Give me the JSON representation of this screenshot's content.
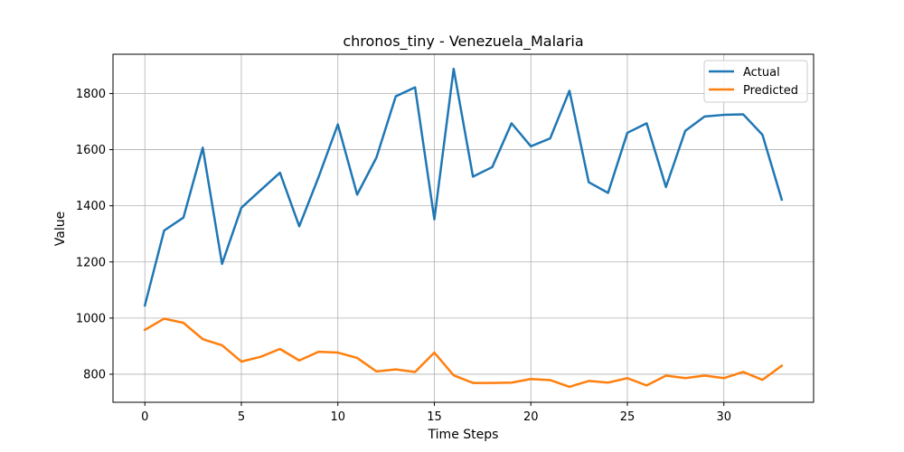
{
  "chart_data": {
    "type": "line",
    "title": "chronos_tiny - Venezuela_Malaria",
    "xlabel": "Time Steps",
    "ylabel": "Value",
    "xlim": [
      -1.65,
      34.65
    ],
    "ylim": [
      700,
      1940
    ],
    "xticks": [
      0,
      5,
      10,
      15,
      20,
      25,
      30
    ],
    "yticks": [
      800,
      1000,
      1200,
      1400,
      1600,
      1800
    ],
    "grid": true,
    "legend_position": "top-right",
    "x": [
      0,
      1,
      2,
      3,
      4,
      5,
      6,
      7,
      8,
      9,
      10,
      11,
      12,
      13,
      14,
      15,
      16,
      17,
      18,
      19,
      20,
      21,
      22,
      23,
      24,
      25,
      26,
      27,
      28,
      29,
      30,
      31,
      32,
      33
    ],
    "series": [
      {
        "name": "Actual",
        "color": "#1f77b4",
        "values": [
          1045,
          1312,
          1358,
          1607,
          1193,
          1393,
          1456,
          1518,
          1327,
          1502,
          1690,
          1440,
          1572,
          1790,
          1822,
          1352,
          1888,
          1504,
          1538,
          1694,
          1612,
          1640,
          1810,
          1484,
          1446,
          1660,
          1694,
          1467,
          1667,
          1718,
          1724,
          1726,
          1653,
          1422
        ]
      },
      {
        "name": "Predicted",
        "color": "#ff7f0e",
        "values": [
          958,
          998,
          983,
          925,
          903,
          845,
          862,
          890,
          849,
          880,
          877,
          858,
          810,
          817,
          808,
          877,
          796,
          769,
          769,
          770,
          783,
          779,
          755,
          776,
          770,
          786,
          760,
          795,
          786,
          795,
          786,
          808,
          780,
          830
        ]
      }
    ]
  }
}
